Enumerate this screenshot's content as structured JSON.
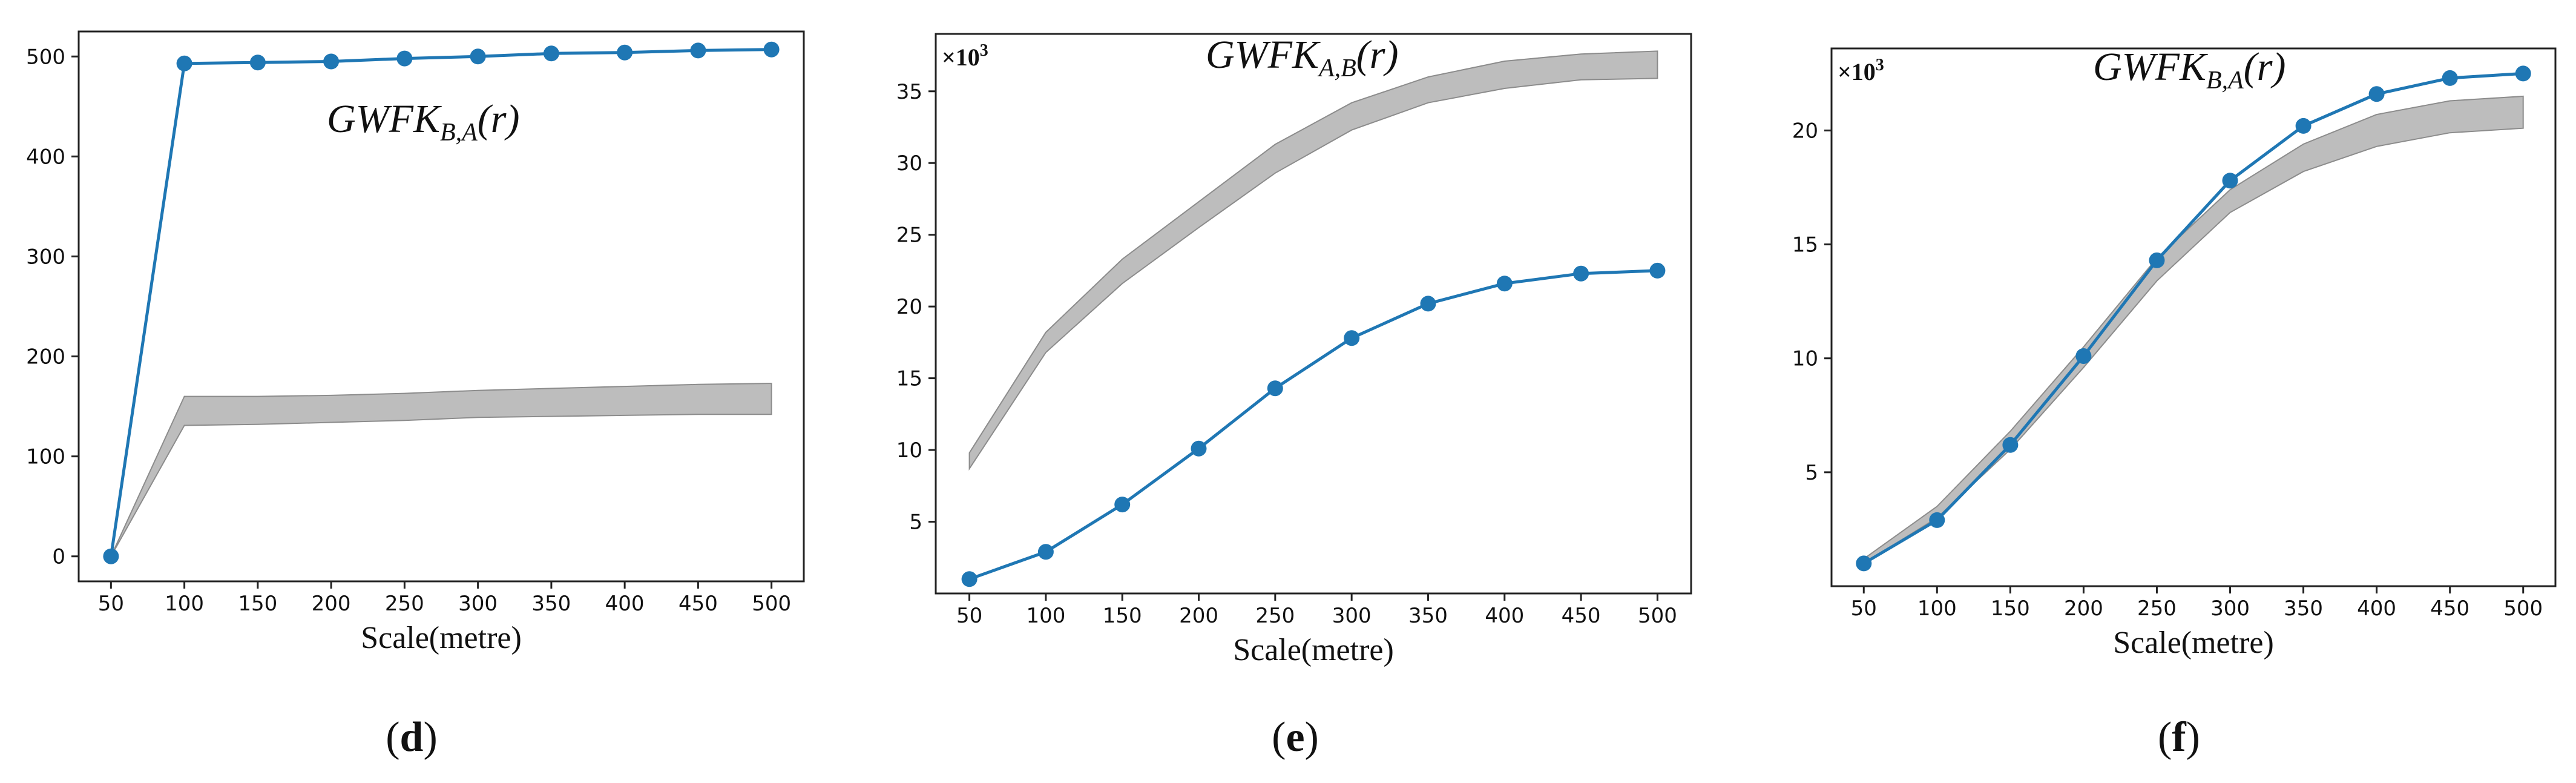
{
  "chart_data": [
    {
      "type": "line",
      "panel": "d",
      "title": {
        "main": "GWFK",
        "sub": "B,A",
        "tail": "(r)"
      },
      "xlabel": "Scale(metre)",
      "ylabel": "",
      "scale_note": null,
      "x": [
        50,
        100,
        150,
        200,
        250,
        300,
        350,
        400,
        450,
        500
      ],
      "xticks": [
        50,
        100,
        150,
        200,
        250,
        300,
        350,
        400,
        450,
        500
      ],
      "xlim": [
        28,
        522
      ],
      "ylim": [
        -25,
        525
      ],
      "yticks": [
        0,
        100,
        200,
        300,
        400,
        500
      ],
      "ytick_labels": [
        "0",
        "100",
        "200",
        "300",
        "400",
        "500"
      ],
      "series": [
        {
          "name": "observed",
          "color": "#1f77b4",
          "marker": "circle",
          "values": [
            0,
            493,
            494,
            495,
            498,
            500,
            503,
            504,
            506,
            507
          ]
        }
      ],
      "envelope": {
        "color": "#bdbdbd",
        "edge": "#8c8c8c",
        "lower": [
          0,
          131,
          132,
          134,
          136,
          139,
          140,
          141,
          142,
          142
        ],
        "upper": [
          0,
          160,
          160,
          161,
          163,
          166,
          168,
          170,
          172,
          173
        ]
      },
      "grid": false,
      "legend": "none"
    },
    {
      "type": "line",
      "panel": "e",
      "title": {
        "main": "GWFK",
        "sub": "A,B",
        "tail": "(r)"
      },
      "xlabel": "Scale(metre)",
      "ylabel": "",
      "scale_note": {
        "base": "×10",
        "exp": "3"
      },
      "x": [
        50,
        100,
        150,
        200,
        250,
        300,
        350,
        400,
        450,
        500
      ],
      "xticks": [
        50,
        100,
        150,
        200,
        250,
        300,
        350,
        400,
        450,
        500
      ],
      "xlim": [
        28,
        522
      ],
      "ylim": [
        0,
        39
      ],
      "yticks": [
        5,
        10,
        15,
        20,
        25,
        30,
        35
      ],
      "ytick_labels": [
        "5",
        "10",
        "15",
        "20",
        "25",
        "30",
        "35"
      ],
      "series": [
        {
          "name": "observed",
          "color": "#1f77b4",
          "marker": "circle",
          "values": [
            1.0,
            2.9,
            6.2,
            10.1,
            14.3,
            17.8,
            20.2,
            21.6,
            22.3,
            22.5
          ]
        }
      ],
      "envelope": {
        "color": "#bdbdbd",
        "edge": "#8c8c8c",
        "lower": [
          8.7,
          16.8,
          21.6,
          25.5,
          29.3,
          32.3,
          34.2,
          35.2,
          35.8,
          35.9
        ],
        "upper": [
          9.8,
          18.2,
          23.3,
          27.3,
          31.3,
          34.2,
          36.0,
          37.1,
          37.6,
          37.8
        ]
      },
      "grid": false,
      "legend": "none"
    },
    {
      "type": "line",
      "panel": "f",
      "title": {
        "main": "GWFK",
        "sub": "B,A",
        "tail": "(r)"
      },
      "xlabel": "Scale(metre)",
      "ylabel": "",
      "scale_note": {
        "base": "×10",
        "exp": "3"
      },
      "x": [
        50,
        100,
        150,
        200,
        250,
        300,
        350,
        400,
        450,
        500
      ],
      "xticks": [
        50,
        100,
        150,
        200,
        250,
        300,
        350,
        400,
        450,
        500
      ],
      "xlim": [
        28,
        522
      ],
      "ylim": [
        0,
        23.6
      ],
      "yticks": [
        5,
        10,
        15,
        20
      ],
      "ytick_labels": [
        "5",
        "10",
        "15",
        "20"
      ],
      "series": [
        {
          "name": "observed",
          "color": "#1f77b4",
          "marker": "circle",
          "values": [
            1.0,
            2.9,
            6.2,
            10.1,
            14.3,
            17.8,
            20.2,
            21.6,
            22.3,
            22.5
          ]
        }
      ],
      "envelope": {
        "color": "#bdbdbd",
        "edge": "#8c8c8c",
        "lower": [
          1.0,
          3.0,
          6.0,
          9.6,
          13.4,
          16.4,
          18.2,
          19.3,
          19.9,
          20.1
        ],
        "upper": [
          1.2,
          3.5,
          6.8,
          10.5,
          14.4,
          17.4,
          19.4,
          20.7,
          21.3,
          21.5
        ]
      },
      "grid": false,
      "legend": "none"
    }
  ],
  "panel_labels": [
    {
      "open": "(",
      "letter": "d",
      "close": ")"
    },
    {
      "open": "(",
      "letter": "e",
      "close": ")"
    },
    {
      "open": "(",
      "letter": "f",
      "close": ")"
    }
  ]
}
